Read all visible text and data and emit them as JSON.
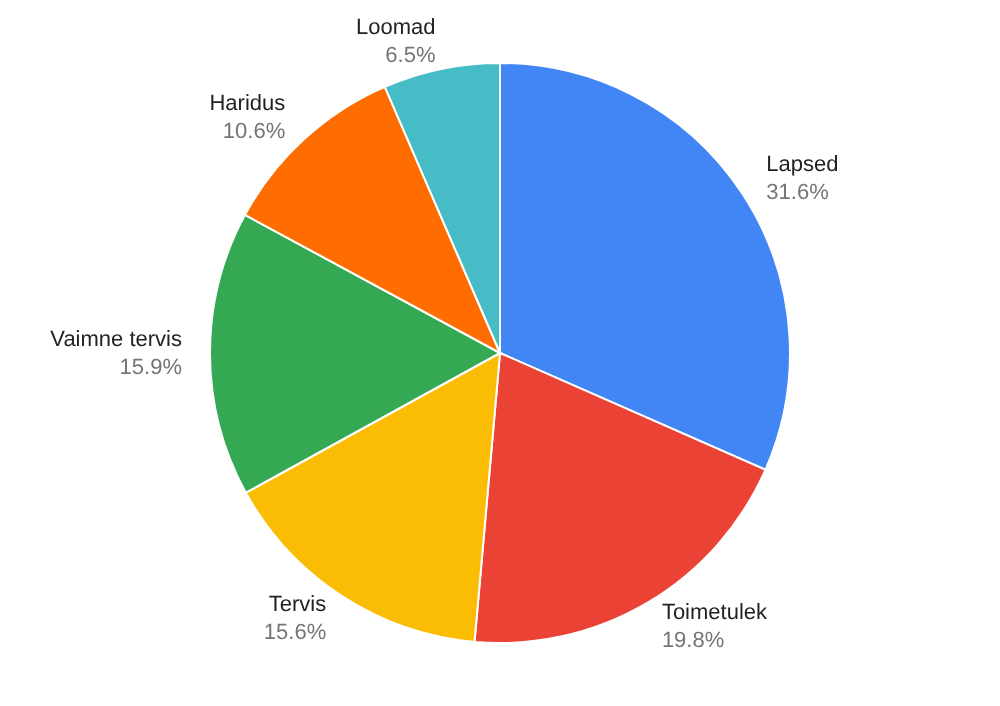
{
  "chart_data": {
    "type": "pie",
    "categories": [
      "Lapsed",
      "Toimetulek",
      "Tervis",
      "Vaimne tervis",
      "Haridus",
      "Loomad"
    ],
    "values": [
      31.6,
      19.8,
      15.6,
      15.9,
      10.6,
      6.5
    ],
    "colors": [
      "#4285f4",
      "#ea4335",
      "#fbbc04",
      "#34a853",
      "#ff6d01",
      "#46bdc6"
    ],
    "value_labels": [
      "31.6%",
      "19.8%",
      "15.6%",
      "15.9%",
      "10.6%",
      "6.5%"
    ]
  }
}
